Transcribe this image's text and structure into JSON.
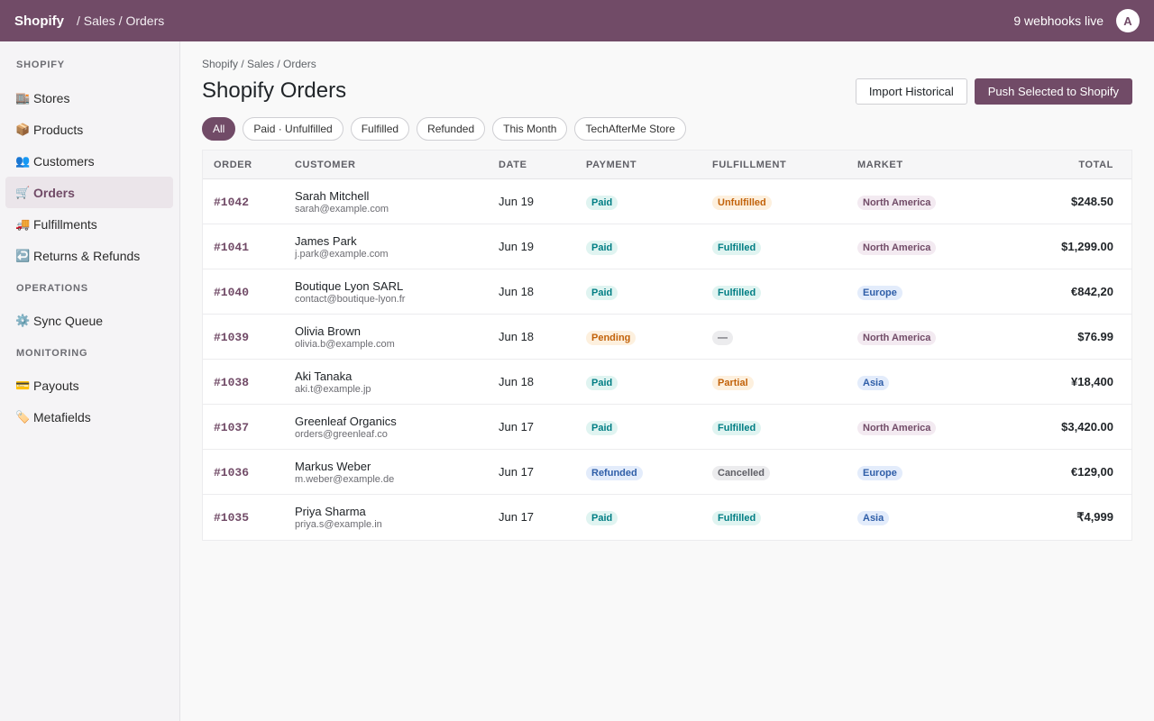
{
  "topbar": {
    "brand": "Shopify",
    "breadcrumb": "/ Sales / Orders",
    "webhooks": "9 webhooks live",
    "avatar": "A"
  },
  "sidebar": {
    "sections": [
      {
        "title": "SHOPIFY",
        "items": [
          {
            "label": "Stores",
            "icon": "🏬",
            "icon_name": "stores-icon",
            "active": false
          },
          {
            "label": "Products",
            "icon": "📦",
            "icon_name": "products-icon",
            "active": false
          },
          {
            "label": "Customers",
            "icon": "👥",
            "icon_name": "customers-icon",
            "active": false
          },
          {
            "label": "Orders",
            "icon": "🛒",
            "icon_name": "cart-icon",
            "active": true
          },
          {
            "label": "Fulfillments",
            "icon": "🚚",
            "icon_name": "truck-icon",
            "active": false
          },
          {
            "label": "Returns & Refunds",
            "icon": "↩️",
            "icon_name": "return-icon",
            "active": false
          }
        ]
      },
      {
        "title": "OPERATIONS",
        "items": [
          {
            "label": "Sync Queue",
            "icon": "⚙️",
            "icon_name": "gear-icon",
            "active": false
          }
        ]
      },
      {
        "title": "MONITORING",
        "items": [
          {
            "label": "Payouts",
            "icon": "💳",
            "icon_name": "card-icon",
            "active": false
          },
          {
            "label": "Metafields",
            "icon": "🏷️",
            "icon_name": "tag-icon",
            "active": false
          }
        ]
      }
    ]
  },
  "main": {
    "breadcrumb": "Shopify / Sales / Orders",
    "title": "Shopify Orders",
    "import_label": "Import Historical",
    "push_label": "Push Selected to Shopify",
    "filters": [
      {
        "label": "All",
        "active": true
      },
      {
        "label": "Paid · Unfulfilled",
        "active": false
      },
      {
        "label": "Fulfilled",
        "active": false
      },
      {
        "label": "Refunded",
        "active": false
      },
      {
        "label": "This Month",
        "active": false
      },
      {
        "label": "TechAfterMe Store",
        "active": false
      }
    ],
    "table": {
      "columns": [
        "ORDER",
        "CUSTOMER",
        "DATE",
        "PAYMENT",
        "FULFILLMENT",
        "MARKET",
        "TOTAL"
      ],
      "rows": [
        {
          "order": "#1042",
          "name": "Sarah Mitchell",
          "email": "sarah@example.com",
          "date": "Jun 19",
          "payment": "Paid",
          "fulfillment": "Unfulfilled",
          "market": "North America",
          "total": "$248.50"
        },
        {
          "order": "#1041",
          "name": "James Park",
          "email": "j.park@example.com",
          "date": "Jun 19",
          "payment": "Paid",
          "fulfillment": "Fulfilled",
          "market": "North America",
          "total": "$1,299.00"
        },
        {
          "order": "#1040",
          "name": "Boutique Lyon SARL",
          "email": "contact@boutique-lyon.fr",
          "date": "Jun 18",
          "payment": "Paid",
          "fulfillment": "Fulfilled",
          "market": "Europe",
          "total": "€842,20"
        },
        {
          "order": "#1039",
          "name": "Olivia Brown",
          "email": "olivia.b@example.com",
          "date": "Jun 18",
          "payment": "Pending",
          "fulfillment": "—",
          "market": "North America",
          "total": "$76.99"
        },
        {
          "order": "#1038",
          "name": "Aki Tanaka",
          "email": "aki.t@example.jp",
          "date": "Jun 18",
          "payment": "Paid",
          "fulfillment": "Partial",
          "market": "Asia",
          "total": "¥18,400"
        },
        {
          "order": "#1037",
          "name": "Greenleaf Organics",
          "email": "orders@greenleaf.co",
          "date": "Jun 17",
          "payment": "Paid",
          "fulfillment": "Fulfilled",
          "market": "North America",
          "total": "$3,420.00"
        },
        {
          "order": "#1036",
          "name": "Markus Weber",
          "email": "m.weber@example.de",
          "date": "Jun 17",
          "payment": "Refunded",
          "fulfillment": "Cancelled",
          "market": "Europe",
          "total": "€129,00"
        },
        {
          "order": "#1035",
          "name": "Priya Sharma",
          "email": "priya.s@example.in",
          "date": "Jun 17",
          "payment": "Paid",
          "fulfillment": "Fulfilled",
          "market": "Asia",
          "total": "₹4,999"
        }
      ]
    }
  },
  "colors": {
    "brand": "#714b67",
    "paid": "#017e84",
    "pending": "#c2620a",
    "info": "#2f5ea8"
  }
}
